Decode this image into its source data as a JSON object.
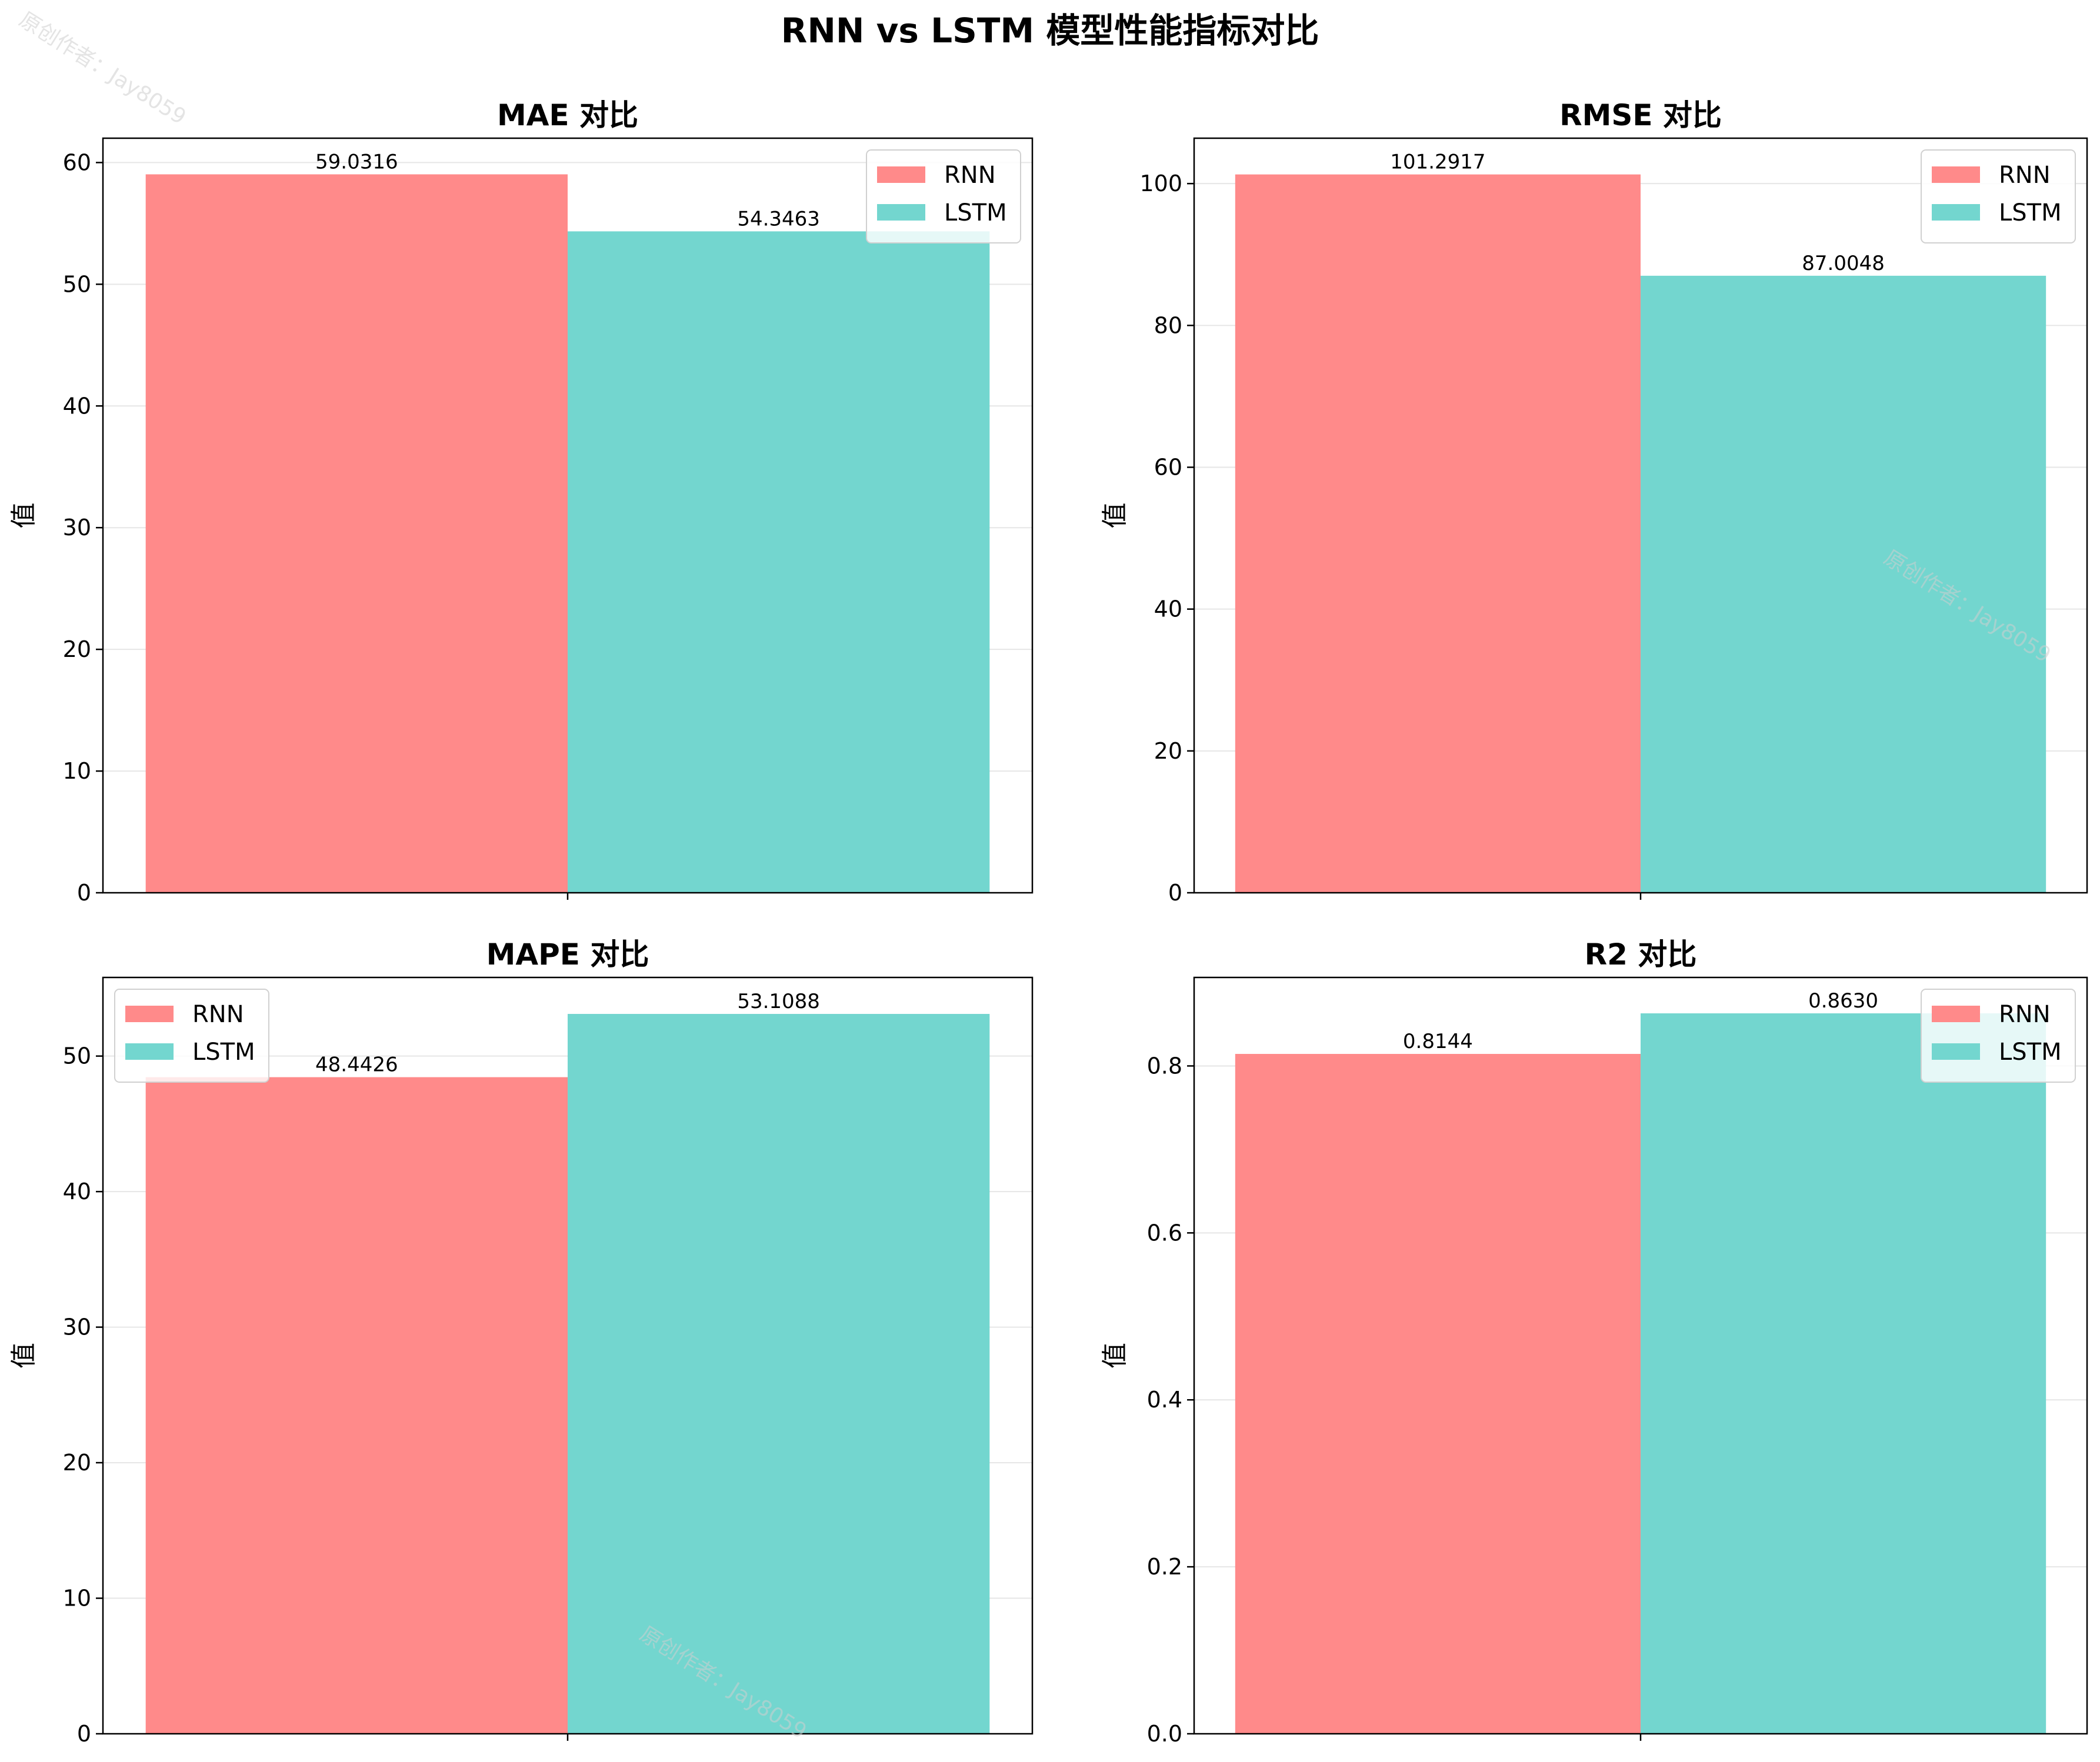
{
  "figure": {
    "title": "RNN vs LSTM 模型性能指标对比",
    "watermark": "原创作者：Jay8059"
  },
  "colors": {
    "RNN": "#ff8a8a",
    "LSTM": "#73d6cf"
  },
  "chart_data": [
    {
      "type": "bar",
      "title": "MAE 对比",
      "ylabel": "值",
      "xlabel": "",
      "ylim": [
        0,
        62
      ],
      "yticks": [
        0,
        10,
        20,
        30,
        40,
        50,
        60
      ],
      "tick_format": "int",
      "grid": "y",
      "legend": "top-right",
      "series": [
        {
          "name": "RNN",
          "value": 59.0316,
          "label": "59.0316"
        },
        {
          "name": "LSTM",
          "value": 54.3463,
          "label": "54.3463"
        }
      ]
    },
    {
      "type": "bar",
      "title": "RMSE 对比",
      "ylabel": "值",
      "xlabel": "",
      "ylim": [
        0,
        106.4
      ],
      "yticks": [
        0,
        20,
        40,
        60,
        80,
        100
      ],
      "tick_format": "int",
      "grid": "y",
      "legend": "top-right",
      "series": [
        {
          "name": "RNN",
          "value": 101.2917,
          "label": "101.2917"
        },
        {
          "name": "LSTM",
          "value": 87.0048,
          "label": "87.0048"
        }
      ]
    },
    {
      "type": "bar",
      "title": "MAPE 对比",
      "ylabel": "值",
      "xlabel": "",
      "ylim": [
        0,
        55.8
      ],
      "yticks": [
        0,
        10,
        20,
        30,
        40,
        50
      ],
      "tick_format": "int",
      "grid": "y",
      "legend": "top-left",
      "series": [
        {
          "name": "RNN",
          "value": 48.4426,
          "label": "48.4426"
        },
        {
          "name": "LSTM",
          "value": 53.1088,
          "label": "53.1088"
        }
      ]
    },
    {
      "type": "bar",
      "title": "R2 对比",
      "ylabel": "值",
      "xlabel": "",
      "ylim": [
        0,
        0.906
      ],
      "yticks": [
        0.0,
        0.2,
        0.4,
        0.6,
        0.8
      ],
      "tick_format": "one-decimal",
      "grid": "y",
      "legend": "top-right",
      "series": [
        {
          "name": "RNN",
          "value": 0.8144,
          "label": "0.8144"
        },
        {
          "name": "LSTM",
          "value": 0.863,
          "label": "0.8630"
        }
      ]
    }
  ]
}
